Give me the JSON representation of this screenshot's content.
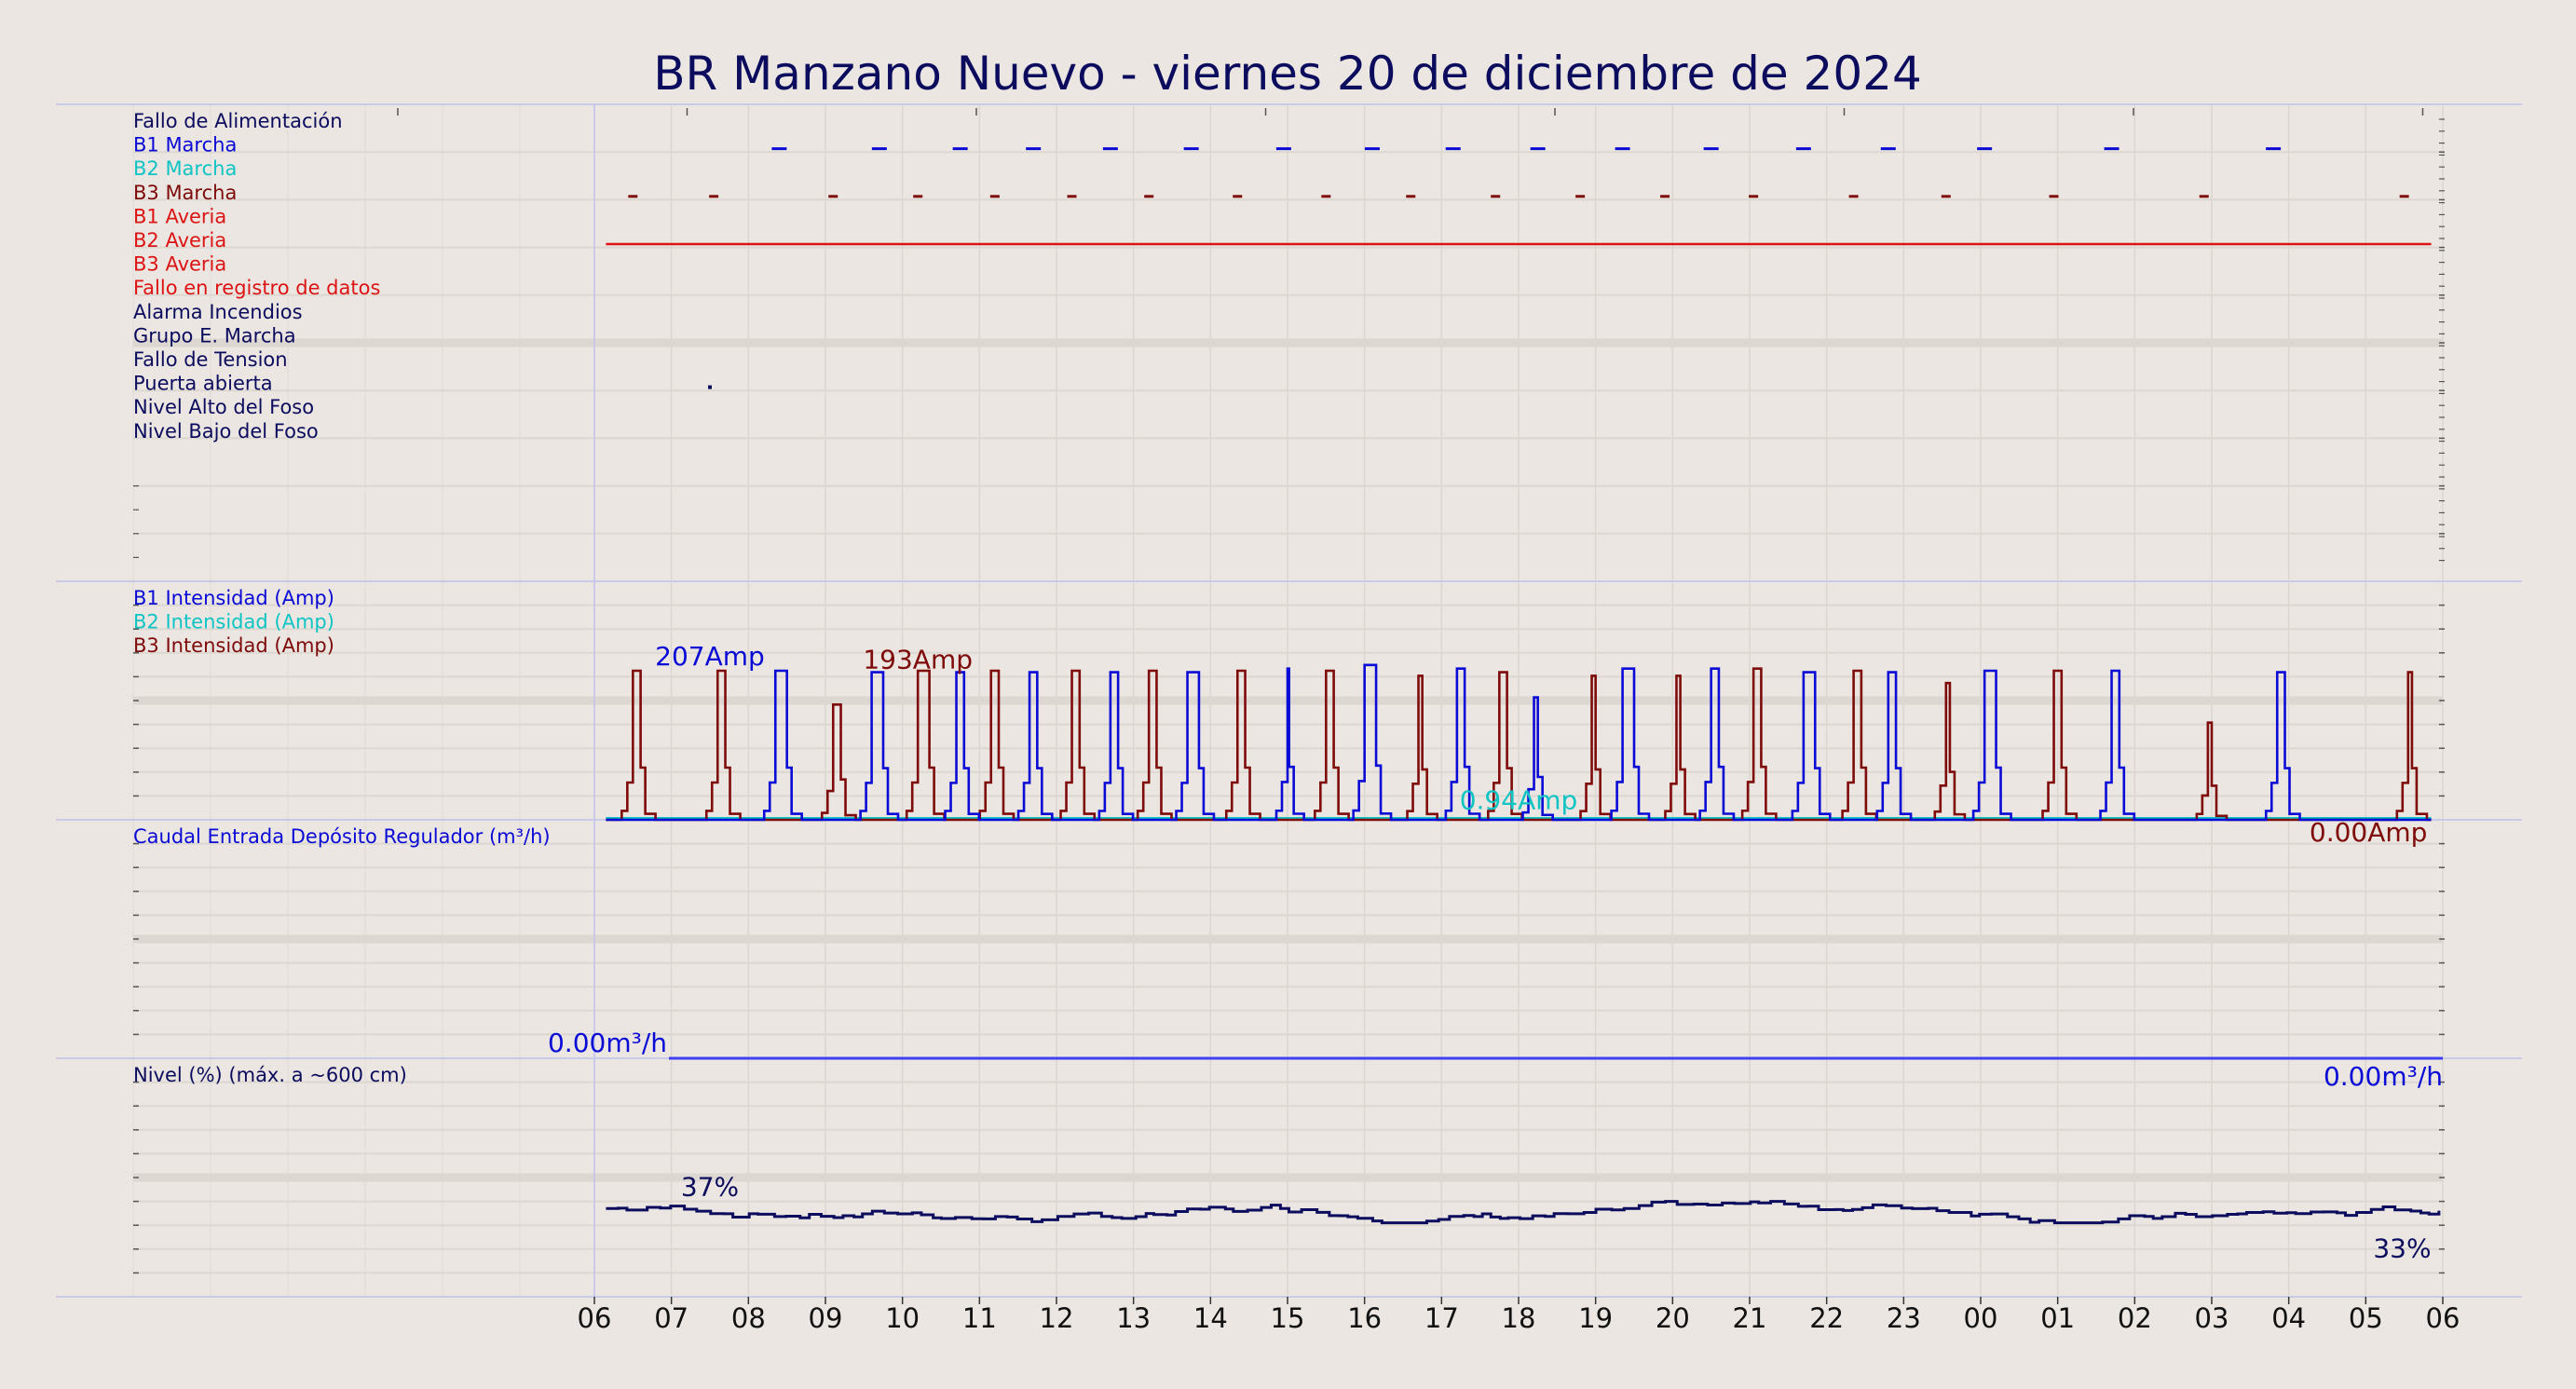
{
  "chart_data": {
    "type": "line",
    "title": "BR Manzano Nuevo   -   viernes 20 de diciembre de 2024",
    "x_ticks": [
      "06",
      "07",
      "08",
      "09",
      "10",
      "11",
      "12",
      "13",
      "14",
      "15",
      "16",
      "17",
      "18",
      "19",
      "20",
      "21",
      "22",
      "23",
      "00",
      "01",
      "02",
      "03",
      "04",
      "05",
      "06"
    ],
    "colors": {
      "navy": "#0c0c5e",
      "blue": "#0a0ad6",
      "cyan": "#10c4c4",
      "maroon": "#7e0a0a",
      "red": "#dc1414",
      "flow": "#4040f0"
    },
    "panels": [
      {
        "id": "status",
        "labels": [
          {
            "text": "Fallo de Alimentación",
            "color": "#0c0c5e"
          },
          {
            "text": "B1 Marcha",
            "color": "#0a0ad6"
          },
          {
            "text": "B2 Marcha",
            "color": "#10c4c4"
          },
          {
            "text": "B3 Marcha",
            "color": "#7e0a0a"
          },
          {
            "text": "B1 Averia",
            "color": "#dc1414"
          },
          {
            "text": "B2 Averia",
            "color": "#dc1414"
          },
          {
            "text": "B3 Averia",
            "color": "#dc1414"
          },
          {
            "text": "Fallo en registro de datos",
            "color": "#dc1414"
          },
          {
            "text": "Alarma Incendios",
            "color": "#0c0c5e"
          },
          {
            "text": "Grupo E. Marcha",
            "color": "#0c0c5e"
          },
          {
            "text": "Fallo de Tension",
            "color": "#0c0c5e"
          },
          {
            "text": "Puerta abierta",
            "color": "#0c0c5e"
          },
          {
            "text": "Nivel Alto del Foso",
            "color": "#0c0c5e"
          },
          {
            "text": "Nivel Bajo del Foso",
            "color": "#0c0c5e"
          }
        ],
        "events": {
          "B1 Marcha": [
            8.4,
            9.7,
            10.75,
            11.7,
            12.7,
            13.75,
            14.95,
            16.1,
            17.15,
            18.25,
            19.35,
            20.5,
            21.7,
            22.8,
            24.05,
            25.7,
            27.8
          ],
          "B3 Marcha": [
            6.5,
            7.55,
            9.1,
            10.2,
            11.2,
            12.2,
            13.2,
            14.35,
            15.5,
            16.6,
            17.7,
            18.8,
            19.9,
            21.05,
            22.35,
            23.55,
            24.95,
            26.9,
            29.5
          ],
          "B2 Averia": [
            [
              6.15,
              29.85
            ]
          ],
          "Puerta abierta": [
            7.5
          ]
        }
      },
      {
        "id": "current",
        "labels": [
          {
            "text": "B1 Intensidad (Amp)",
            "color": "#0a0ad6"
          },
          {
            "text": "B2 Intensidad (Amp)",
            "color": "#10c4c4"
          },
          {
            "text": "B3 Intensidad (Amp)",
            "color": "#7e0a0a"
          }
        ],
        "y_max": 207,
        "b1_runs": [
          [
            8.35,
            8.5,
            207
          ],
          [
            9.6,
            9.75,
            205
          ],
          [
            10.7,
            10.8,
            205
          ],
          [
            11.65,
            11.75,
            205
          ],
          [
            12.7,
            12.8,
            205
          ],
          [
            13.7,
            13.85,
            205
          ],
          [
            15.0,
            15.02,
            210
          ],
          [
            16.0,
            16.15,
            215
          ],
          [
            17.2,
            17.3,
            210
          ],
          [
            18.2,
            18.25,
            170
          ],
          [
            19.35,
            19.5,
            210
          ],
          [
            20.5,
            20.6,
            210
          ],
          [
            21.7,
            21.85,
            205
          ],
          [
            22.8,
            22.9,
            205
          ],
          [
            24.05,
            24.2,
            207
          ],
          [
            25.7,
            25.8,
            207
          ],
          [
            27.85,
            27.95,
            205
          ]
        ],
        "b3_runs": [
          [
            6.5,
            6.6,
            207
          ],
          [
            7.6,
            7.7,
            207
          ],
          [
            9.1,
            9.2,
            160
          ],
          [
            10.2,
            10.35,
            207
          ],
          [
            11.15,
            11.25,
            207
          ],
          [
            12.2,
            12.3,
            207
          ],
          [
            13.2,
            13.3,
            207
          ],
          [
            14.35,
            14.45,
            207
          ],
          [
            15.5,
            15.6,
            207
          ],
          [
            16.7,
            16.75,
            200
          ],
          [
            17.75,
            17.85,
            205
          ],
          [
            18.95,
            19.0,
            200
          ],
          [
            20.05,
            20.1,
            200
          ],
          [
            21.05,
            21.15,
            210
          ],
          [
            22.35,
            22.45,
            207
          ],
          [
            23.55,
            23.6,
            190
          ],
          [
            24.95,
            25.05,
            207
          ],
          [
            26.95,
            27.0,
            135
          ],
          [
            29.55,
            29.6,
            205
          ]
        ],
        "annotations": [
          {
            "text": "207Amp",
            "x": 7.5,
            "y": 215,
            "color": "#0a0ad6"
          },
          {
            "text": "193Amp",
            "x": 10.2,
            "y": 210,
            "color": "#7e0a0a"
          },
          {
            "text": "0.94Amp",
            "x": 18.0,
            "y": 15,
            "color": "#10c4c4"
          },
          {
            "text": "0.00Amp",
            "x": 29.8,
            "y": -30,
            "color": "#7e0a0a"
          }
        ]
      },
      {
        "id": "flow",
        "labels": [
          {
            "text": "Caudal Entrada Depósito Regulador (m³/h)",
            "color": "#0a0ad6"
          }
        ],
        "value": 0.0,
        "annotations": [
          {
            "text": "0.00m³/h",
            "x": 6.0,
            "color": "#0a0ad6"
          },
          {
            "text": "0.00m³/h",
            "x": 30.0,
            "color": "#0a0ad6"
          }
        ]
      },
      {
        "id": "level",
        "labels": [
          {
            "text": "Nivel (%) (máx. a ~600 cm)",
            "color": "#0c0c5e"
          }
        ],
        "y_max": 100,
        "start": 37,
        "end": 33,
        "annotations": [
          {
            "text": "37%",
            "x": 7.5,
            "color": "#0c0c5e"
          },
          {
            "text": "33%",
            "x": 29.85,
            "color": "#0c0c5e"
          }
        ]
      }
    ]
  }
}
